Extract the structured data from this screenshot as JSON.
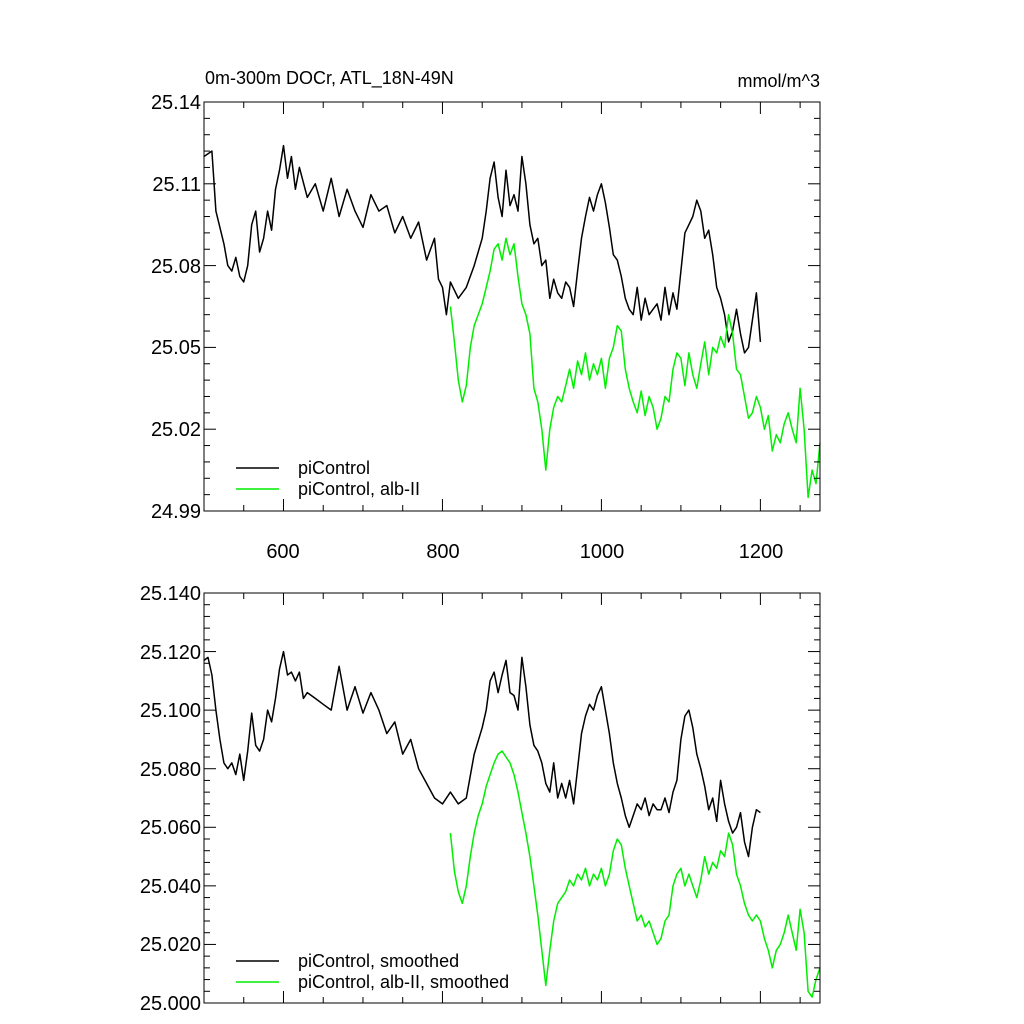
{
  "chart_data": [
    {
      "type": "line",
      "title": "0m-300m DOCr, ATL_18N-49N",
      "units": "mmol/m^3",
      "xlim": [
        500,
        1275
      ],
      "ylim": [
        24.99,
        25.14
      ],
      "x_ticks": [
        600,
        800,
        1000,
        1200
      ],
      "x_tick_labels": [
        "600",
        "800",
        "1000",
        "1200"
      ],
      "y_ticks": [
        24.99,
        25.02,
        25.05,
        25.08,
        25.11,
        25.14
      ],
      "y_tick_labels": [
        "24.99",
        "25.02",
        "25.05",
        "25.08",
        "25.11",
        "25.14"
      ],
      "legend_position": "bottom-left",
      "series": [
        {
          "name": "piControl",
          "color": "#000000",
          "x": [
            500,
            510,
            515,
            520,
            525,
            530,
            535,
            540,
            545,
            550,
            555,
            560,
            565,
            570,
            575,
            580,
            585,
            590,
            595,
            600,
            605,
            610,
            615,
            620,
            630,
            640,
            650,
            660,
            670,
            680,
            690,
            700,
            710,
            720,
            730,
            740,
            750,
            760,
            770,
            780,
            790,
            795,
            800,
            805,
            810,
            820,
            830,
            840,
            850,
            855,
            860,
            865,
            870,
            875,
            880,
            885,
            890,
            895,
            900,
            905,
            910,
            915,
            920,
            925,
            930,
            935,
            940,
            945,
            950,
            955,
            960,
            965,
            970,
            975,
            980,
            985,
            990,
            995,
            1000,
            1005,
            1010,
            1015,
            1020,
            1025,
            1030,
            1035,
            1040,
            1045,
            1050,
            1055,
            1060,
            1065,
            1070,
            1075,
            1080,
            1085,
            1090,
            1095,
            1100,
            1105,
            1110,
            1115,
            1120,
            1125,
            1130,
            1135,
            1140,
            1145,
            1150,
            1155,
            1160,
            1165,
            1170,
            1175,
            1180,
            1185,
            1190,
            1195,
            1200
          ],
          "values": [
            25.12,
            25.122,
            25.1,
            25.094,
            25.088,
            25.08,
            25.078,
            25.083,
            25.076,
            25.074,
            25.08,
            25.095,
            25.1,
            25.085,
            25.09,
            25.1,
            25.093,
            25.108,
            25.115,
            25.124,
            25.112,
            25.12,
            25.108,
            25.116,
            25.105,
            25.11,
            25.1,
            25.112,
            25.098,
            25.108,
            25.1,
            25.094,
            25.106,
            25.1,
            25.102,
            25.092,
            25.098,
            25.09,
            25.096,
            25.082,
            25.09,
            25.075,
            25.072,
            25.062,
            25.074,
            25.068,
            25.072,
            25.08,
            25.09,
            25.1,
            25.112,
            25.118,
            25.105,
            25.098,
            25.115,
            25.102,
            25.106,
            25.1,
            25.12,
            25.11,
            25.095,
            25.088,
            25.09,
            25.08,
            25.082,
            25.068,
            25.075,
            25.07,
            25.068,
            25.074,
            25.072,
            25.065,
            25.078,
            25.09,
            25.098,
            25.105,
            25.1,
            25.106,
            25.11,
            25.103,
            25.094,
            25.084,
            25.082,
            25.076,
            25.068,
            25.064,
            25.062,
            25.072,
            25.06,
            25.068,
            25.062,
            25.064,
            25.066,
            25.06,
            25.072,
            25.062,
            25.07,
            25.064,
            25.078,
            25.092,
            25.095,
            25.098,
            25.104,
            25.1,
            25.09,
            25.093,
            25.084,
            25.072,
            25.068,
            25.062,
            25.052,
            25.056,
            25.064,
            25.055,
            25.048,
            25.05,
            25.06,
            25.07,
            25.052
          ]
        },
        {
          "name": "piControl, alb-II",
          "color": "#00ee00",
          "x": [
            810,
            815,
            820,
            825,
            830,
            835,
            840,
            845,
            850,
            855,
            860,
            865,
            870,
            875,
            880,
            885,
            890,
            895,
            900,
            905,
            910,
            915,
            920,
            925,
            930,
            935,
            940,
            945,
            950,
            955,
            960,
            965,
            970,
            975,
            980,
            985,
            990,
            995,
            1000,
            1005,
            1010,
            1015,
            1020,
            1025,
            1030,
            1035,
            1040,
            1045,
            1050,
            1055,
            1060,
            1065,
            1070,
            1075,
            1080,
            1085,
            1090,
            1095,
            1100,
            1105,
            1110,
            1115,
            1120,
            1125,
            1130,
            1135,
            1140,
            1145,
            1150,
            1155,
            1160,
            1165,
            1170,
            1175,
            1180,
            1185,
            1190,
            1195,
            1200,
            1205,
            1210,
            1215,
            1220,
            1225,
            1230,
            1235,
            1240,
            1245,
            1250,
            1255,
            1260,
            1265,
            1270,
            1275
          ],
          "values": [
            25.065,
            25.052,
            25.038,
            25.03,
            25.036,
            25.05,
            25.058,
            25.062,
            25.066,
            25.072,
            25.078,
            25.086,
            25.088,
            25.082,
            25.09,
            25.084,
            25.088,
            25.076,
            25.066,
            25.062,
            25.055,
            25.035,
            25.03,
            25.02,
            25.005,
            25.02,
            25.028,
            25.032,
            25.03,
            25.036,
            25.042,
            25.035,
            25.045,
            25.04,
            25.048,
            25.038,
            25.044,
            25.04,
            25.046,
            25.035,
            25.046,
            25.05,
            25.058,
            25.056,
            25.042,
            25.035,
            25.03,
            25.026,
            25.034,
            25.025,
            25.032,
            25.028,
            25.02,
            25.024,
            25.032,
            25.03,
            25.042,
            25.048,
            25.046,
            25.036,
            25.048,
            25.04,
            25.035,
            25.044,
            25.052,
            25.04,
            25.05,
            25.048,
            25.054,
            25.05,
            25.062,
            25.055,
            25.042,
            25.04,
            25.032,
            25.024,
            25.026,
            25.032,
            25.028,
            25.02,
            25.025,
            25.012,
            25.018,
            25.015,
            25.022,
            25.026,
            25.02,
            25.015,
            25.035,
            25.02,
            24.995,
            25.005,
            25.0,
            25.015
          ]
        }
      ]
    },
    {
      "type": "line",
      "title": "",
      "xlim": [
        500,
        1275
      ],
      "ylim": [
        25.0,
        25.14
      ],
      "x_ticks": [
        600,
        800,
        1000,
        1200
      ],
      "y_ticks": [
        25.0,
        25.02,
        25.04,
        25.06,
        25.08,
        25.1,
        25.12,
        25.14
      ],
      "y_tick_labels": [
        "25.000",
        "25.020",
        "25.040",
        "25.060",
        "25.080",
        "25.100",
        "25.120",
        "25.140"
      ],
      "legend_position": "bottom-left",
      "series": [
        {
          "name": "piControl, smoothed",
          "color": "#000000",
          "x": [
            500,
            505,
            510,
            515,
            520,
            525,
            530,
            535,
            540,
            545,
            550,
            555,
            560,
            565,
            570,
            575,
            580,
            585,
            590,
            595,
            600,
            605,
            610,
            615,
            620,
            625,
            630,
            640,
            650,
            660,
            670,
            680,
            690,
            700,
            710,
            720,
            730,
            740,
            750,
            760,
            770,
            780,
            790,
            800,
            810,
            820,
            830,
            840,
            850,
            855,
            860,
            865,
            870,
            875,
            880,
            885,
            890,
            895,
            900,
            905,
            910,
            915,
            920,
            925,
            930,
            935,
            940,
            945,
            950,
            955,
            960,
            965,
            970,
            975,
            980,
            985,
            990,
            995,
            1000,
            1005,
            1010,
            1015,
            1020,
            1025,
            1030,
            1035,
            1040,
            1045,
            1050,
            1055,
            1060,
            1065,
            1070,
            1075,
            1080,
            1085,
            1090,
            1095,
            1100,
            1105,
            1110,
            1115,
            1120,
            1125,
            1130,
            1135,
            1140,
            1145,
            1150,
            1155,
            1160,
            1165,
            1170,
            1175,
            1180,
            1185,
            1190,
            1195,
            1200
          ],
          "values": [
            25.117,
            25.118,
            25.112,
            25.1,
            25.09,
            25.082,
            25.08,
            25.082,
            25.078,
            25.085,
            25.076,
            25.086,
            25.099,
            25.088,
            25.086,
            25.09,
            25.1,
            25.096,
            25.104,
            25.114,
            25.12,
            25.112,
            25.113,
            25.11,
            25.113,
            25.104,
            25.106,
            25.104,
            25.102,
            25.1,
            25.115,
            25.1,
            25.108,
            25.099,
            25.106,
            25.1,
            25.092,
            25.096,
            25.085,
            25.09,
            25.08,
            25.075,
            25.07,
            25.068,
            25.072,
            25.068,
            25.07,
            25.085,
            25.094,
            25.1,
            25.11,
            25.113,
            25.106,
            25.112,
            25.117,
            25.106,
            25.105,
            25.1,
            25.118,
            25.108,
            25.095,
            25.088,
            25.086,
            25.082,
            25.075,
            25.072,
            25.082,
            25.07,
            25.075,
            25.07,
            25.076,
            25.068,
            25.08,
            25.092,
            25.098,
            25.102,
            25.1,
            25.105,
            25.108,
            25.1,
            25.092,
            25.082,
            25.075,
            25.07,
            25.064,
            25.06,
            25.064,
            25.068,
            25.066,
            25.07,
            25.064,
            25.068,
            25.066,
            25.066,
            25.07,
            25.065,
            25.072,
            25.076,
            25.09,
            25.098,
            25.1,
            25.094,
            25.085,
            25.08,
            25.074,
            25.066,
            25.07,
            25.062,
            25.076,
            25.068,
            25.062,
            25.058,
            25.06,
            25.065,
            25.055,
            25.05,
            25.06,
            25.066,
            25.065
          ]
        },
        {
          "name": "piControl, alb-II, smoothed",
          "color": "#00ee00",
          "x": [
            810,
            815,
            820,
            825,
            830,
            835,
            840,
            845,
            850,
            855,
            860,
            865,
            870,
            875,
            880,
            885,
            890,
            895,
            900,
            905,
            910,
            915,
            920,
            925,
            930,
            935,
            940,
            945,
            950,
            955,
            960,
            965,
            970,
            975,
            980,
            985,
            990,
            995,
            1000,
            1005,
            1010,
            1015,
            1020,
            1025,
            1030,
            1035,
            1040,
            1045,
            1050,
            1055,
            1060,
            1065,
            1070,
            1075,
            1080,
            1085,
            1090,
            1095,
            1100,
            1105,
            1110,
            1115,
            1120,
            1125,
            1130,
            1135,
            1140,
            1145,
            1150,
            1155,
            1160,
            1165,
            1170,
            1175,
            1180,
            1185,
            1190,
            1195,
            1200,
            1205,
            1210,
            1215,
            1220,
            1225,
            1230,
            1235,
            1240,
            1245,
            1250,
            1255,
            1260,
            1265,
            1270,
            1275
          ],
          "values": [
            25.058,
            25.045,
            25.038,
            25.034,
            25.04,
            25.05,
            25.058,
            25.064,
            25.068,
            25.074,
            25.078,
            25.082,
            25.085,
            25.086,
            25.084,
            25.082,
            25.078,
            25.072,
            25.065,
            25.058,
            25.05,
            25.04,
            25.03,
            25.018,
            25.006,
            25.018,
            25.028,
            25.034,
            25.036,
            25.038,
            25.042,
            25.04,
            25.044,
            25.042,
            25.046,
            25.04,
            25.044,
            25.042,
            25.046,
            25.04,
            25.044,
            25.052,
            25.056,
            25.054,
            25.046,
            25.04,
            25.034,
            25.028,
            25.03,
            25.026,
            25.028,
            25.024,
            25.02,
            25.022,
            25.028,
            25.03,
            25.04,
            25.044,
            25.046,
            25.04,
            25.044,
            25.04,
            25.036,
            25.042,
            25.05,
            25.044,
            25.048,
            25.046,
            25.052,
            25.05,
            25.058,
            25.054,
            25.044,
            25.04,
            25.034,
            25.03,
            25.028,
            25.03,
            25.028,
            25.022,
            25.018,
            25.012,
            25.018,
            25.02,
            25.024,
            25.03,
            25.024,
            25.018,
            25.032,
            25.024,
            25.004,
            25.002,
            25.008,
            25.012
          ]
        }
      ]
    }
  ]
}
